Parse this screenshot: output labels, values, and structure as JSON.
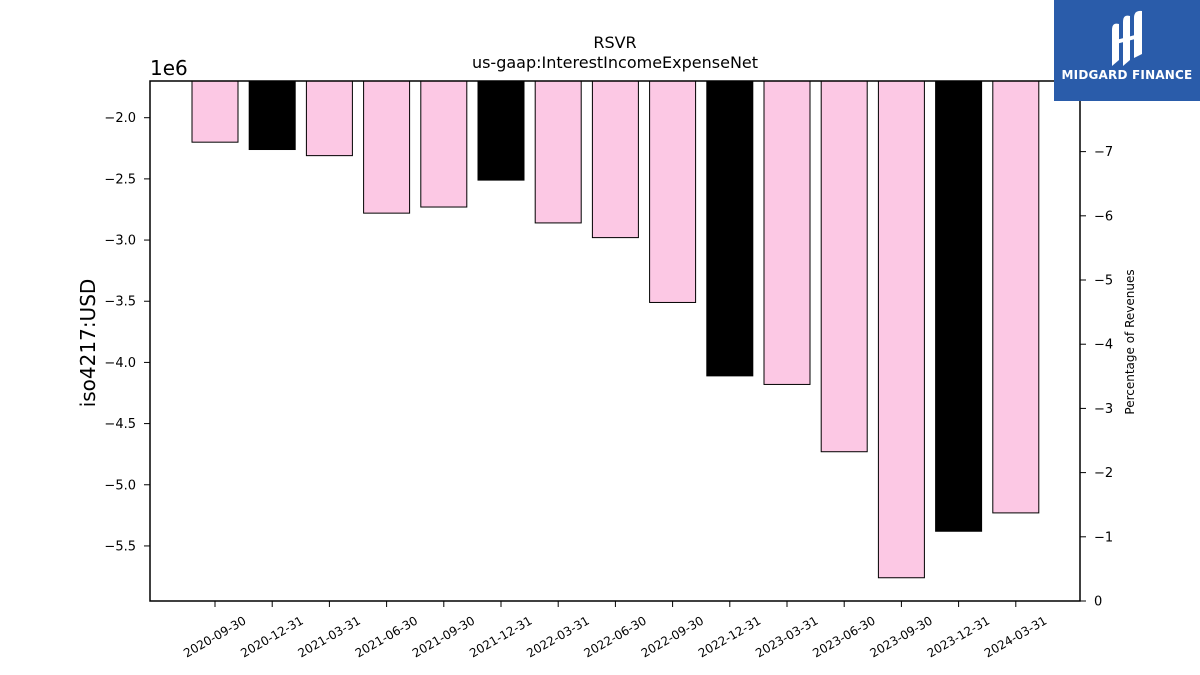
{
  "chart_data": {
    "type": "bar",
    "title": "RSVR",
    "subtitle": "us-gaap:InterestIncomeExpenseNet",
    "ylabel": "iso4217:USD",
    "y2label": "Percentage of Revenues",
    "y_offset_label": "1e6",
    "ylim": [
      -5.95,
      -1.7
    ],
    "yticks": [
      -2.0,
      -2.5,
      -3.0,
      -3.5,
      -4.0,
      -4.5,
      -5.0,
      -5.5
    ],
    "ytick_labels": [
      "−2.0",
      "−2.5",
      "−3.0",
      "−3.5",
      "−4.0",
      "−4.5",
      "−5.0",
      "−5.5"
    ],
    "y2lim": [
      0,
      8.1
    ],
    "y2ticks": [
      0,
      1,
      2,
      3,
      4,
      5,
      6,
      7
    ],
    "y2tick_labels": [
      "0",
      "−1",
      "−2",
      "−3",
      "−4",
      "−5",
      "−6",
      "−7"
    ],
    "categories": [
      "2020-09-30",
      "2020-12-31",
      "2021-03-31",
      "2021-06-30",
      "2021-09-30",
      "2021-12-31",
      "2022-03-31",
      "2022-06-30",
      "2022-09-30",
      "2022-12-31",
      "2023-03-31",
      "2023-06-30",
      "2023-09-30",
      "2023-12-31",
      "2024-03-31"
    ],
    "values": [
      -2.2,
      -2.26,
      -2.31,
      -2.78,
      -2.73,
      -2.51,
      -2.86,
      -2.98,
      -3.51,
      -4.11,
      -4.18,
      -4.73,
      -5.76,
      -5.38,
      -5.23
    ],
    "colors": [
      "#fcc8e4",
      "#000000",
      "#fcc8e4",
      "#fcc8e4",
      "#fcc8e4",
      "#000000",
      "#fcc8e4",
      "#fcc8e4",
      "#fcc8e4",
      "#000000",
      "#fcc8e4",
      "#fcc8e4",
      "#fcc8e4",
      "#000000",
      "#fcc8e4"
    ],
    "grid": false
  },
  "logo": {
    "text": "MIDGARD FINANCE",
    "background": "#2a5caa"
  }
}
